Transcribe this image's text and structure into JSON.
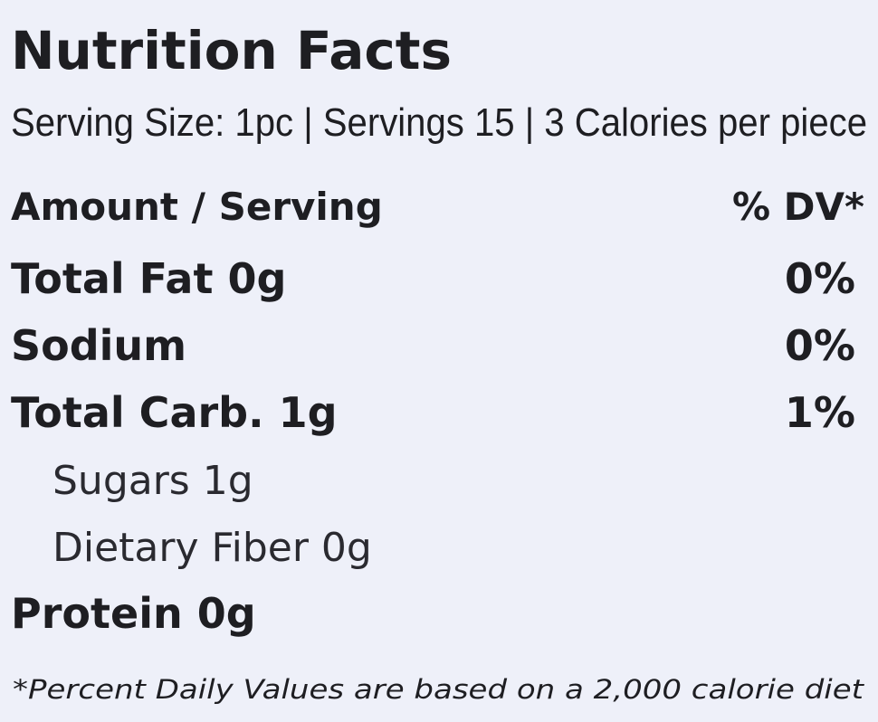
{
  "title": "Nutrition Facts",
  "serving": "Serving Size: 1pc | Servings 15 | 3 Calories per piece",
  "header": {
    "amount": "Amount / Serving",
    "dv": "% DV*"
  },
  "rows": [
    {
      "label": "Total Fat 0g",
      "dv": "0%"
    },
    {
      "label": "Sodium",
      "dv": "0%"
    },
    {
      "label": "Total Carb. 1g",
      "dv": "1%",
      "sub_rows": [
        {
          "label": "Sugars 1g"
        },
        {
          "label": "Dietary Fiber 0g"
        }
      ]
    },
    {
      "label": "Protein 0g"
    }
  ],
  "footnote": "*Percent Daily Values are based on a 2,000 calorie diet"
}
